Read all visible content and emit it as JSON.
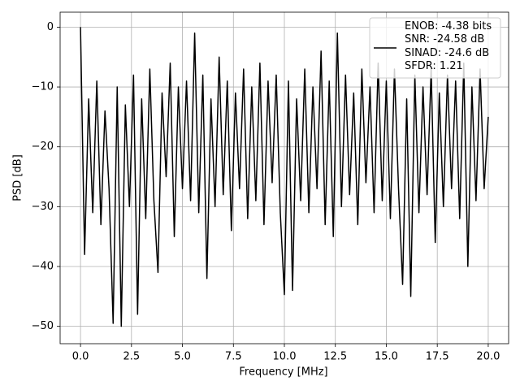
{
  "chart_data": {
    "type": "line",
    "xlabel": "Frequency [MHz]",
    "ylabel": "PSD [dB]",
    "xlim": [
      -1.0,
      21.0
    ],
    "ylim": [
      -52.9,
      2.5
    ],
    "xticks": [
      {
        "value": 0,
        "label": "0.0"
      },
      {
        "value": 2.5,
        "label": "2.5"
      },
      {
        "value": 5,
        "label": "5.0"
      },
      {
        "value": 7.5,
        "label": "7.5"
      },
      {
        "value": 10,
        "label": "10.0"
      },
      {
        "value": 12.5,
        "label": "12.5"
      },
      {
        "value": 15,
        "label": "15.0"
      },
      {
        "value": 17.5,
        "label": "17.5"
      },
      {
        "value": 20,
        "label": "20.0"
      }
    ],
    "yticks": [
      {
        "value": -50,
        "label": "−50"
      },
      {
        "value": -40,
        "label": "−40"
      },
      {
        "value": -30,
        "label": "−30"
      },
      {
        "value": -20,
        "label": "−20"
      },
      {
        "value": -10,
        "label": "−10"
      },
      0
    ],
    "grid": true,
    "legend": "upper right",
    "series": [
      {
        "name": "ENOB: -4.38 bits\nSNR: -24.58 dB\nSINAD: -24.6 dB\nSFDR: 1.21",
        "color": "#000000",
        "x": [
          0,
          0.2,
          0.4,
          0.6,
          0.8,
          1.0,
          1.2,
          1.4,
          1.6,
          1.8,
          2.0,
          2.2,
          2.4,
          2.6,
          2.8,
          3.0,
          3.2,
          3.4,
          3.6,
          3.8,
          4.0,
          4.2,
          4.4,
          4.6,
          4.8,
          5.0,
          5.2,
          5.4,
          5.6,
          5.8,
          6.0,
          6.2,
          6.4,
          6.6,
          6.8,
          7.0,
          7.2,
          7.4,
          7.6,
          7.8,
          8.0,
          8.2,
          8.4,
          8.6,
          8.8,
          9.0,
          9.2,
          9.4,
          9.6,
          9.8,
          10.0,
          10.2,
          10.4,
          10.6,
          10.8,
          11.0,
          11.2,
          11.4,
          11.6,
          11.8,
          12.0,
          12.2,
          12.4,
          12.6,
          12.8,
          13.0,
          13.2,
          13.4,
          13.6,
          13.8,
          14.0,
          14.2,
          14.4,
          14.6,
          14.8,
          15.0,
          15.2,
          15.4,
          15.6,
          15.8,
          16.0,
          16.2,
          16.4,
          16.6,
          16.8,
          17.0,
          17.2,
          17.4,
          17.6,
          17.8,
          18.0,
          18.2,
          18.4,
          18.6,
          18.8,
          19.0,
          19.2,
          19.4,
          19.6,
          19.8,
          20.0
        ],
        "values": [
          0,
          -38,
          -12,
          -31,
          -9,
          -33,
          -14,
          -27,
          -49.5,
          -10,
          -50,
          -13,
          -30,
          -8,
          -48,
          -12,
          -32,
          -7,
          -29,
          -41,
          -11,
          -25,
          -6,
          -35,
          -10,
          -27,
          -9,
          -29,
          -1,
          -31,
          -8,
          -42,
          -12,
          -30,
          -5,
          -28,
          -9,
          -34,
          -11,
          -27,
          -7,
          -32,
          -10,
          -29,
          -6,
          -33,
          -9,
          -26,
          -8,
          -31,
          -44.7,
          -9,
          -44,
          -12,
          -29,
          -7,
          -31,
          -10,
          -27,
          -4,
          -33,
          -9,
          -35,
          -1,
          -30,
          -8,
          -28,
          -11,
          -33,
          -7,
          -26,
          -10,
          -31,
          -6,
          -29,
          -9,
          -32,
          -7,
          -27,
          -43,
          -12,
          -45,
          -8,
          -31,
          -10,
          -28,
          -7,
          -36,
          -11,
          -30,
          -8,
          -27,
          -9,
          -32,
          -6,
          -40,
          -10,
          -29,
          -7,
          -27,
          -15
        ]
      }
    ]
  }
}
